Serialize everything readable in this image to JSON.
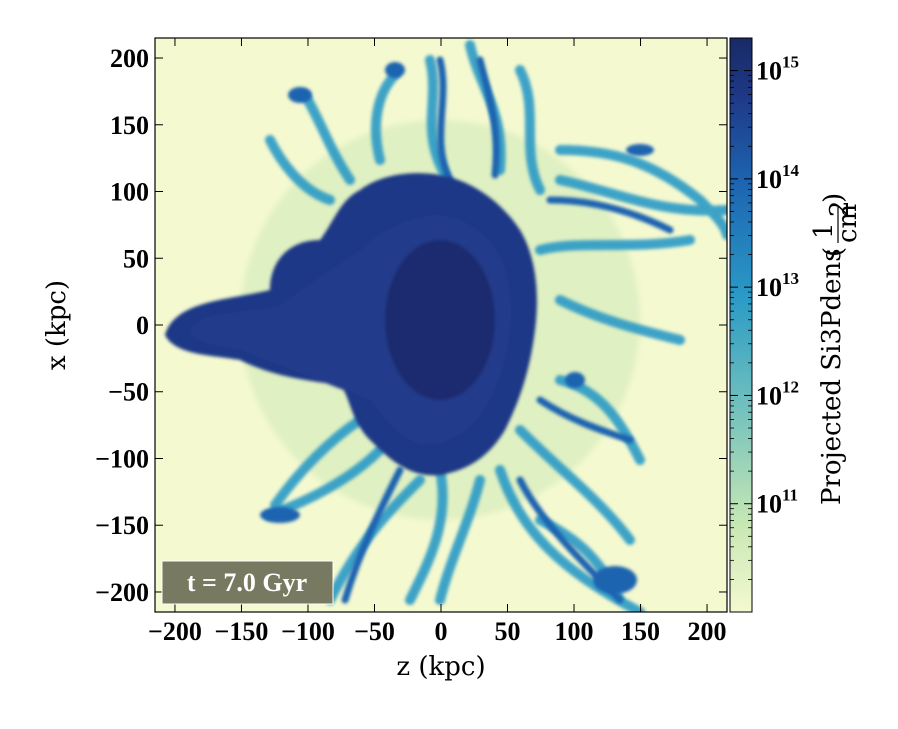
{
  "chart_data": {
    "type": "heatmap",
    "title": "",
    "xlabel": "z  (kpc)",
    "ylabel": "x  (kpc)",
    "xlim": [
      -215,
      215
    ],
    "ylim": [
      -215,
      215
    ],
    "x_ticks": [
      -200,
      -150,
      -100,
      -50,
      0,
      50,
      100,
      150,
      200
    ],
    "y_ticks": [
      200,
      150,
      100,
      50,
      0,
      -50,
      -100,
      -150,
      -200
    ],
    "x_tick_labels": [
      "−200",
      "−150",
      "−100",
      "−50",
      "0",
      "50",
      "100",
      "150",
      "200"
    ],
    "y_tick_labels": [
      "200",
      "150",
      "100",
      "50",
      "0",
      "−50",
      "−100",
      "−150",
      "−200"
    ],
    "annotation": "t = 7.0 Gyr",
    "colorbar": {
      "label": "Projected Si3Pdens",
      "unit_numerator": "1",
      "unit_denominator": "cm",
      "unit_exponent": "2",
      "scale": "log",
      "range": [
        10000000000.0,
        2000000000000000.0
      ],
      "tick_exponents": [
        11,
        12,
        13,
        14,
        15
      ],
      "tick_base": "10",
      "colors": [
        "#f4f9d0",
        "#c8e8b4",
        "#74c2bd",
        "#2a9ac6",
        "#1d64b0",
        "#1f3886",
        "#182a66"
      ]
    }
  }
}
